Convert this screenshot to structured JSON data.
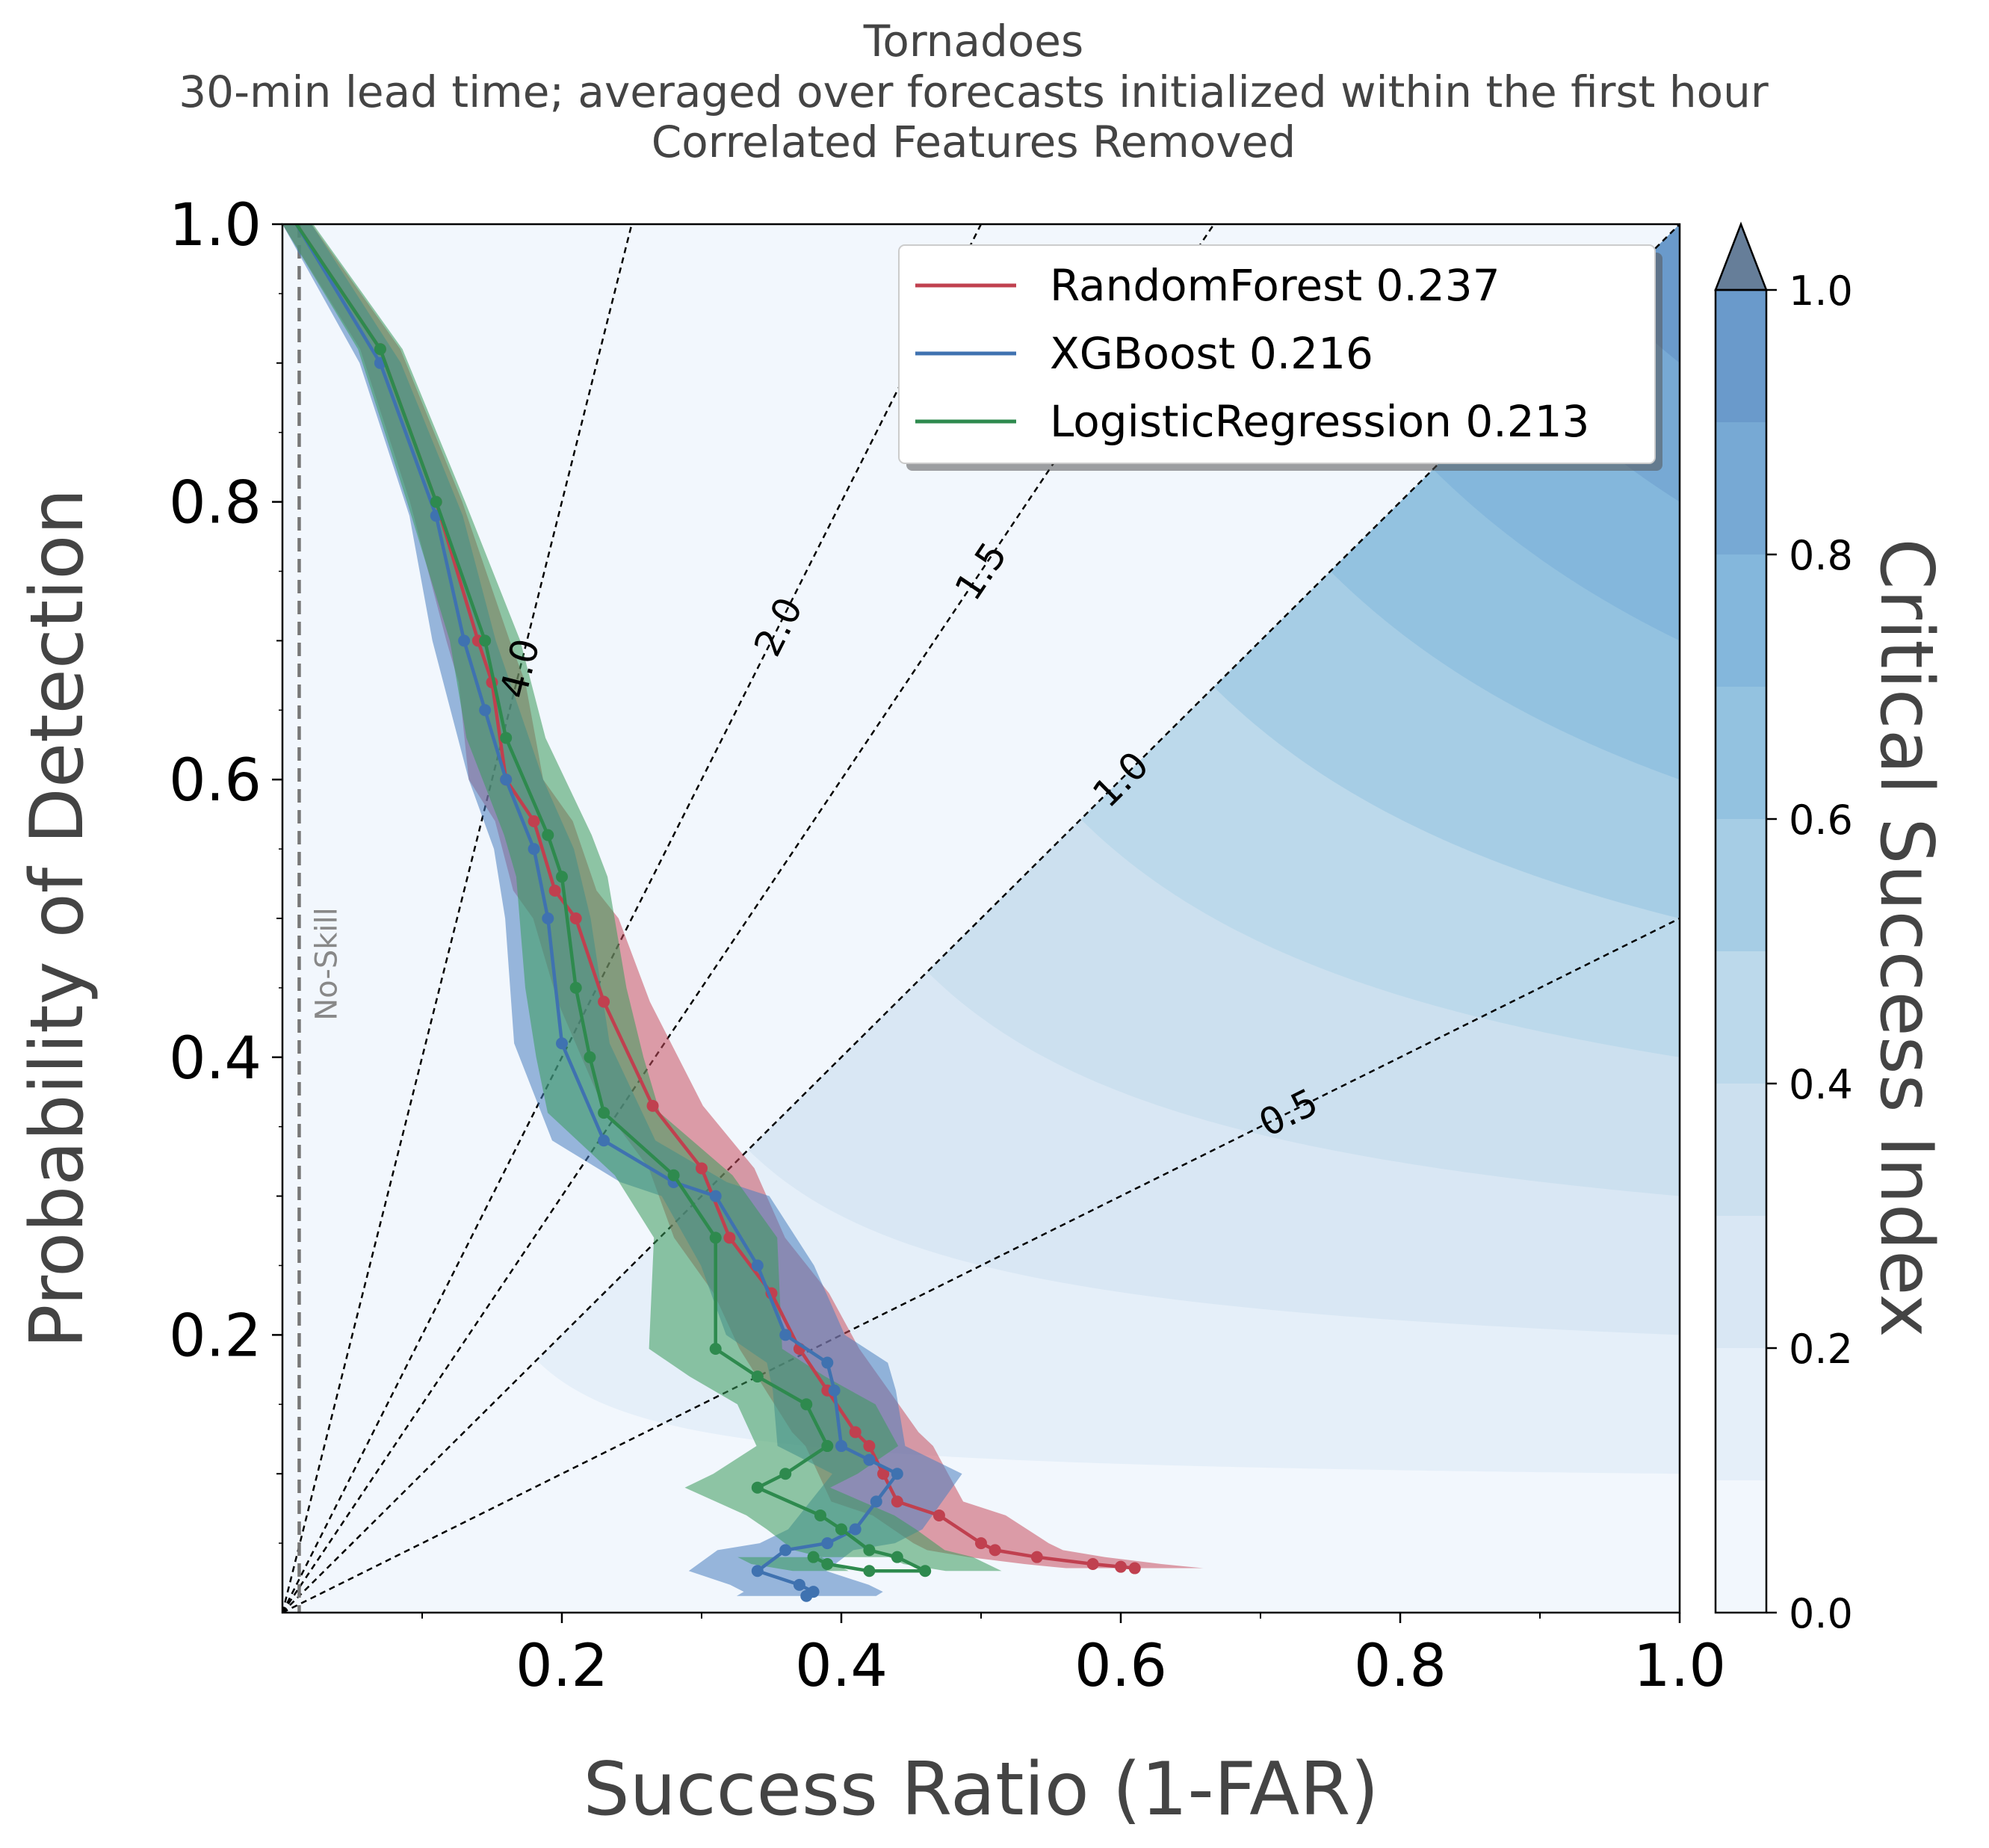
{
  "chart_data": {
    "type": "line",
    "title_lines": [
      "Tornadoes",
      "30-min lead time; averaged over forecasts initialized within the first hour",
      "Correlated Features Removed"
    ],
    "xlabel": "Success Ratio (1-FAR)",
    "ylabel": "Probability of Detection",
    "xlim": [
      0,
      1
    ],
    "ylim": [
      0,
      1
    ],
    "x_ticks": [
      "0.2",
      "0.4",
      "0.6",
      "0.8",
      "1.0"
    ],
    "y_ticks": [
      "0.2",
      "0.4",
      "0.6",
      "0.8",
      "1.0"
    ],
    "colorbar": {
      "label": "Critical Success Index",
      "ticks": [
        "0.0",
        "0.2",
        "0.4",
        "0.6",
        "0.8",
        "1.0"
      ],
      "levels": [
        0,
        0.1,
        0.2,
        0.3,
        0.4,
        0.5,
        0.6,
        0.7,
        0.8,
        0.9,
        1.0
      ],
      "colors": [
        "#f2f7fd",
        "#e5eff9",
        "#d9e7f4",
        "#cce0ef",
        "#bcd9eb",
        "#a6cde5",
        "#93c2e0",
        "#84b7dc",
        "#77a9d4",
        "#6a9acb"
      ],
      "extend_color": "#667e99"
    },
    "no_skill": {
      "label": "No-Skill",
      "x": 0.012
    },
    "bias_lines": [
      {
        "label": "4.0",
        "value": 4.0
      },
      {
        "label": "2.0",
        "value": 2.0
      },
      {
        "label": "1.5",
        "value": 1.5
      },
      {
        "label": "1.0",
        "value": 1.0
      },
      {
        "label": "0.5",
        "value": 0.5
      }
    ],
    "legend_position": "upper-right",
    "grid": false,
    "series": [
      {
        "name": "RandomForest 0.237",
        "color": "#c0404f",
        "band_color": "#c85060",
        "sr": [
          0.01,
          0.07,
          0.11,
          0.14,
          0.15,
          0.16,
          0.18,
          0.195,
          0.21,
          0.23,
          0.265,
          0.3,
          0.32,
          0.35,
          0.37,
          0.39,
          0.41,
          0.42,
          0.43,
          0.44,
          0.47,
          0.5,
          0.51,
          0.54,
          0.58,
          0.6,
          0.61
        ],
        "pod": [
          1.0,
          0.91,
          0.8,
          0.7,
          0.67,
          0.6,
          0.57,
          0.52,
          0.5,
          0.44,
          0.365,
          0.32,
          0.27,
          0.23,
          0.19,
          0.16,
          0.13,
          0.12,
          0.1,
          0.08,
          0.07,
          0.05,
          0.045,
          0.04,
          0.035,
          0.033,
          0.032
        ],
        "band": 0.018
      },
      {
        "name": "XGBoost 0.216",
        "color": "#3f72b0",
        "band_color": "#4a80c0",
        "sr": [
          0.01,
          0.07,
          0.11,
          0.13,
          0.145,
          0.16,
          0.18,
          0.19,
          0.2,
          0.23,
          0.28,
          0.31,
          0.34,
          0.36,
          0.39,
          0.395,
          0.4,
          0.42,
          0.44,
          0.425,
          0.41,
          0.39,
          0.36,
          0.34,
          0.37,
          0.38,
          0.375
        ],
        "pod": [
          1.0,
          0.9,
          0.79,
          0.7,
          0.65,
          0.6,
          0.55,
          0.5,
          0.41,
          0.34,
          0.31,
          0.3,
          0.25,
          0.2,
          0.18,
          0.16,
          0.12,
          0.11,
          0.1,
          0.08,
          0.06,
          0.05,
          0.045,
          0.03,
          0.02,
          0.015,
          0.012
        ],
        "band": 0.018
      },
      {
        "name": "LogisticRegression 0.213",
        "color": "#2e8a4e",
        "band_color": "#3b9a5b",
        "sr": [
          0.01,
          0.07,
          0.11,
          0.145,
          0.16,
          0.19,
          0.2,
          0.21,
          0.22,
          0.23,
          0.28,
          0.31,
          0.31,
          0.34,
          0.375,
          0.39,
          0.36,
          0.34,
          0.385,
          0.4,
          0.42,
          0.44,
          0.46,
          0.42,
          0.39,
          0.38
        ],
        "pod": [
          1.0,
          0.91,
          0.8,
          0.7,
          0.63,
          0.56,
          0.53,
          0.45,
          0.4,
          0.36,
          0.315,
          0.27,
          0.19,
          0.17,
          0.15,
          0.12,
          0.1,
          0.09,
          0.07,
          0.06,
          0.045,
          0.04,
          0.03,
          0.03,
          0.035,
          0.04
        ],
        "band": 0.02
      }
    ]
  }
}
